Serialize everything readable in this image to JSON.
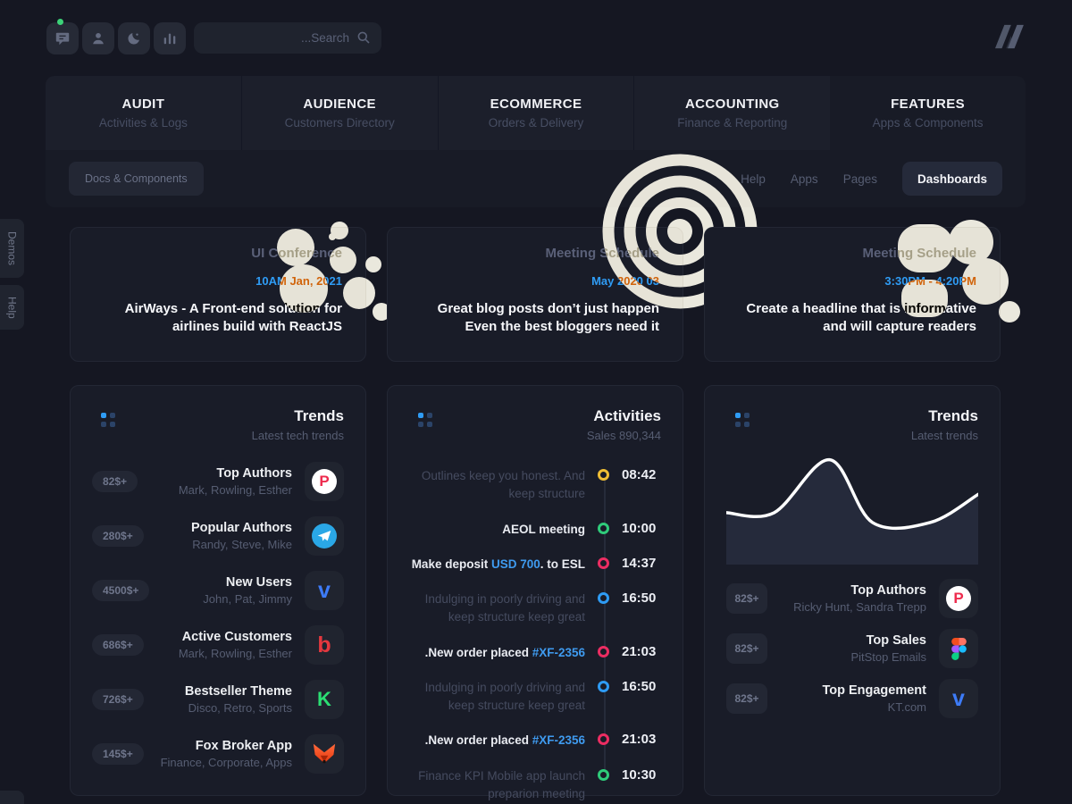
{
  "topbar": {
    "search_placeholder": "...Search",
    "icons": [
      "messages",
      "user",
      "dark-mode",
      "stats"
    ]
  },
  "tabs": [
    {
      "label": "AUDIT",
      "sublabel": "Activities & Logs"
    },
    {
      "label": "AUDIENCE",
      "sublabel": "Customers Directory"
    },
    {
      "label": "ECOMMERCE",
      "sublabel": "Orders & Delivery"
    },
    {
      "label": "ACCOUNTING",
      "sublabel": "Finance & Reporting"
    },
    {
      "label": "FEATURES",
      "sublabel": "Apps & Components"
    }
  ],
  "subnav": {
    "docs_button": "Docs & Components",
    "links": [
      "Help",
      "Apps",
      "Pages"
    ],
    "active_link": "Dashboards"
  },
  "side_tabs": [
    "Demos",
    "Help"
  ],
  "event_cards": [
    {
      "title": "UI Conference",
      "time": "10AM Jan, 2021",
      "text": "AirWays - A Front-end solution for airlines build with ReactJS",
      "decoration": "bubbles"
    },
    {
      "title": "Meeting Schedule",
      "time": "May 2020 03",
      "text": "Great blog posts don’t just happen Even the best bloggers need it",
      "decoration": "arcs"
    },
    {
      "title": "Meeting Schedule",
      "time": "3:30PM - 4:20PM",
      "text": "Create a headline that is informative and will capture readers",
      "decoration": "blobs"
    }
  ],
  "trends_left": {
    "title": "Trends",
    "subtitle": "Latest tech trends",
    "items": [
      {
        "badge": "82$+",
        "title": "Top Authors",
        "subtitle": "Mark, Rowling, Esther",
        "icon": "producthunt"
      },
      {
        "badge": "280$+",
        "title": "Popular Authors",
        "subtitle": "Randy, Steve, Mike",
        "icon": "telegram"
      },
      {
        "badge": "4500$+",
        "title": "New Users",
        "subtitle": "John, Pat, Jimmy",
        "icon": "vimeo"
      },
      {
        "badge": "686$+",
        "title": "Active Customers",
        "subtitle": "Mark, Rowling, Esther",
        "icon": "b-logo"
      },
      {
        "badge": "726$+",
        "title": "Bestseller Theme",
        "subtitle": "Disco, Retro, Sports",
        "icon": "kickstarter"
      },
      {
        "badge": "145$+",
        "title": "Fox Broker App",
        "subtitle": "Finance, Corporate, Apps",
        "icon": "fox"
      }
    ]
  },
  "activities": {
    "title": "Activities",
    "subtitle": "Sales 890,344",
    "items": [
      {
        "pre": "Outlines keep you honest. And keep structure",
        "link": "",
        "post": "",
        "time": "08:42",
        "color": "#F0BE35",
        "muted": true
      },
      {
        "pre": "AEOL meeting",
        "link": "",
        "post": "",
        "time": "10:00",
        "color": "#2FCB7A",
        "muted": false
      },
      {
        "pre": "Make deposit ",
        "link": "USD 700",
        "post": ". to ESL",
        "time": "14:37",
        "color": "#EC2D62",
        "muted": false
      },
      {
        "pre": "Indulging in poorly driving and keep structure keep great",
        "link": "",
        "post": "",
        "time": "16:50",
        "color": "#2E9BF4",
        "muted": true
      },
      {
        "pre": ".New order placed ",
        "link": "#XF-2356",
        "post": "",
        "time": "21:03",
        "color": "#EC2D62",
        "muted": false
      },
      {
        "pre": "Indulging in poorly driving and keep structure keep great",
        "link": "",
        "post": "",
        "time": "16:50",
        "color": "#2E9BF4",
        "muted": true
      },
      {
        "pre": ".New order placed ",
        "link": "#XF-2356",
        "post": "",
        "time": "21:03",
        "color": "#EC2D62",
        "muted": false
      },
      {
        "pre": "Finance KPI Mobile app launch preparion meeting",
        "link": "",
        "post": "",
        "time": "10:30",
        "color": "#2FCB7A",
        "muted": true
      }
    ]
  },
  "trends_right": {
    "title": "Trends",
    "subtitle": "Latest trends",
    "items": [
      {
        "badge": "82$+",
        "title": "Top Authors",
        "subtitle": "Ricky Hunt, Sandra Trepp",
        "icon": "producthunt"
      },
      {
        "badge": "82$+",
        "title": "Top Sales",
        "subtitle": "PitStop Emails",
        "icon": "figma"
      },
      {
        "badge": "82$+",
        "title": "Top Engagement",
        "subtitle": "KT.com",
        "icon": "vimeo"
      }
    ]
  },
  "chart_data": {
    "type": "area",
    "title": "Trends sparkline (no axes shown)",
    "x": [
      0,
      0.19,
      0.41,
      0.58,
      0.81,
      1
    ],
    "y": [
      0.48,
      0.48,
      0.97,
      0.39,
      0.39,
      0.65
    ],
    "ylim": [
      0,
      1
    ],
    "grid": false,
    "legend": false,
    "line_color": "#FFFFFF",
    "fill_color": "#252A3B"
  },
  "colors": {
    "accent_blue": "#2F9CF5",
    "green": "#2FCB7A",
    "yellow": "#F0BE35",
    "pink": "#EC2D62",
    "background": "#151722",
    "card": "#191C28"
  }
}
